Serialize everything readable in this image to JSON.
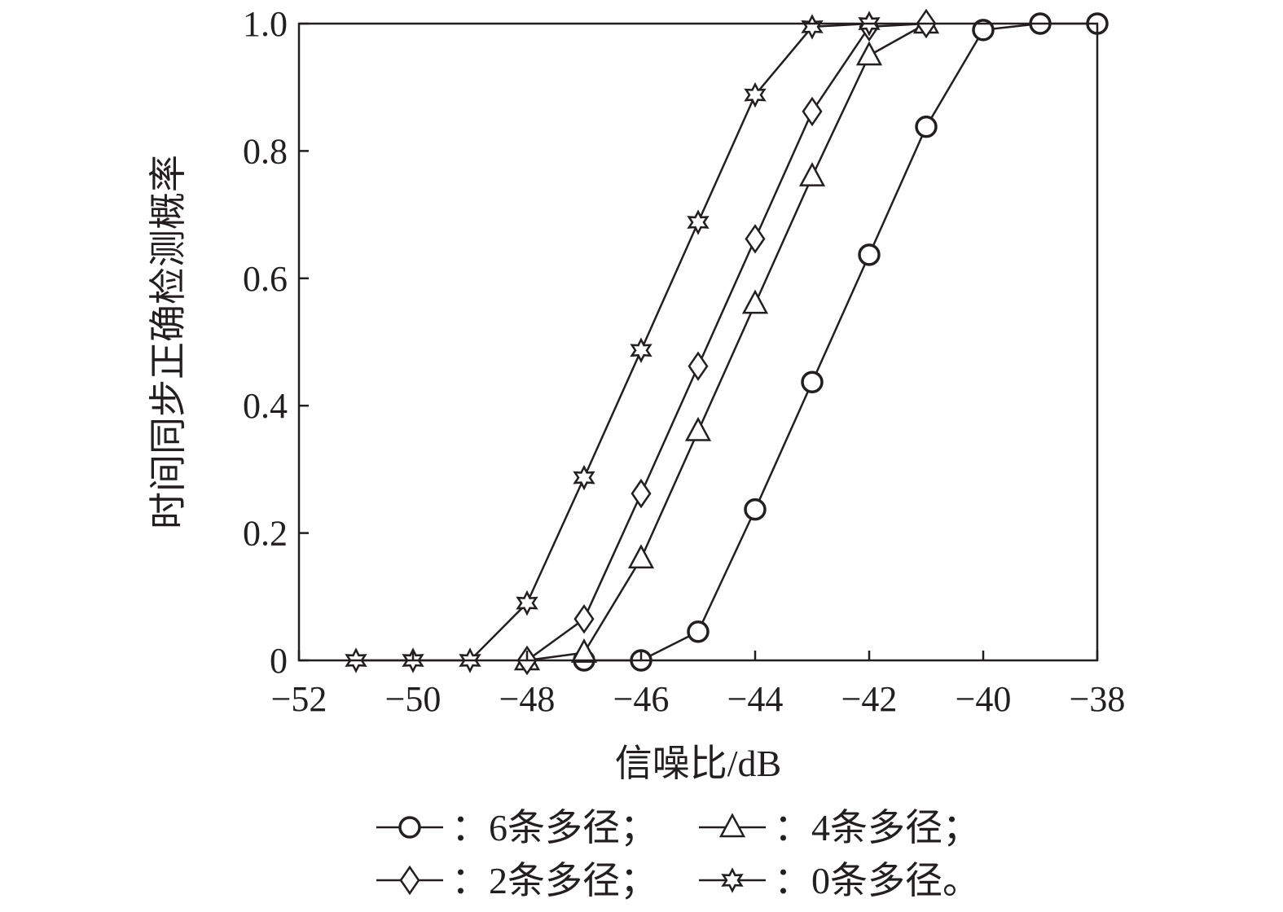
{
  "chart_data": {
    "type": "line",
    "xlabel": "信噪比/dB",
    "ylabel": "时间同步正确检测概率",
    "xlim": [
      -52,
      -38
    ],
    "ylim": [
      0,
      1
    ],
    "x_ticks": [
      -52,
      -50,
      -48,
      -46,
      -44,
      -42,
      -40,
      -38
    ],
    "x_tick_labels": [
      "−52",
      "−50",
      "−48",
      "−46",
      "−44",
      "−42",
      "−40",
      "−38"
    ],
    "y_ticks": [
      0,
      0.2,
      0.4,
      0.6,
      0.8,
      1.0
    ],
    "y_tick_labels": [
      "0",
      "0.2",
      "0.4",
      "0.6",
      "0.8",
      "1.0"
    ],
    "grid": false,
    "legend_position": "bottom",
    "colors": {
      "line": "#231f20"
    },
    "series": [
      {
        "name": "：6条多径；",
        "marker": "circle",
        "x": [
          -47,
          -46,
          -45,
          -44,
          -43,
          -42,
          -41,
          -40,
          -39,
          -38
        ],
        "y": [
          0,
          0,
          0.045,
          0.237,
          0.437,
          0.637,
          0.838,
          0.99,
          1.0,
          1.0
        ]
      },
      {
        "name": "：4条多径；",
        "marker": "triangle",
        "x": [
          -48,
          -47,
          -46,
          -45,
          -44,
          -43,
          -42,
          -41
        ],
        "y": [
          0,
          0.012,
          0.16,
          0.36,
          0.56,
          0.76,
          0.95,
          1.0
        ]
      },
      {
        "name": "：2条多径；",
        "marker": "diamond",
        "x": [
          -48,
          -47,
          -46,
          -45,
          -44,
          -43,
          -42,
          -41
        ],
        "y": [
          0,
          0.065,
          0.262,
          0.462,
          0.662,
          0.862,
          0.995,
          1.0
        ]
      },
      {
        "name": "：0条多径。",
        "marker": "star",
        "x": [
          -51,
          -50,
          -49,
          -48,
          -47,
          -46,
          -45,
          -44,
          -43,
          -42
        ],
        "y": [
          0,
          0,
          0,
          0.09,
          0.287,
          0.487,
          0.688,
          0.888,
          0.995,
          1.0
        ]
      }
    ]
  }
}
